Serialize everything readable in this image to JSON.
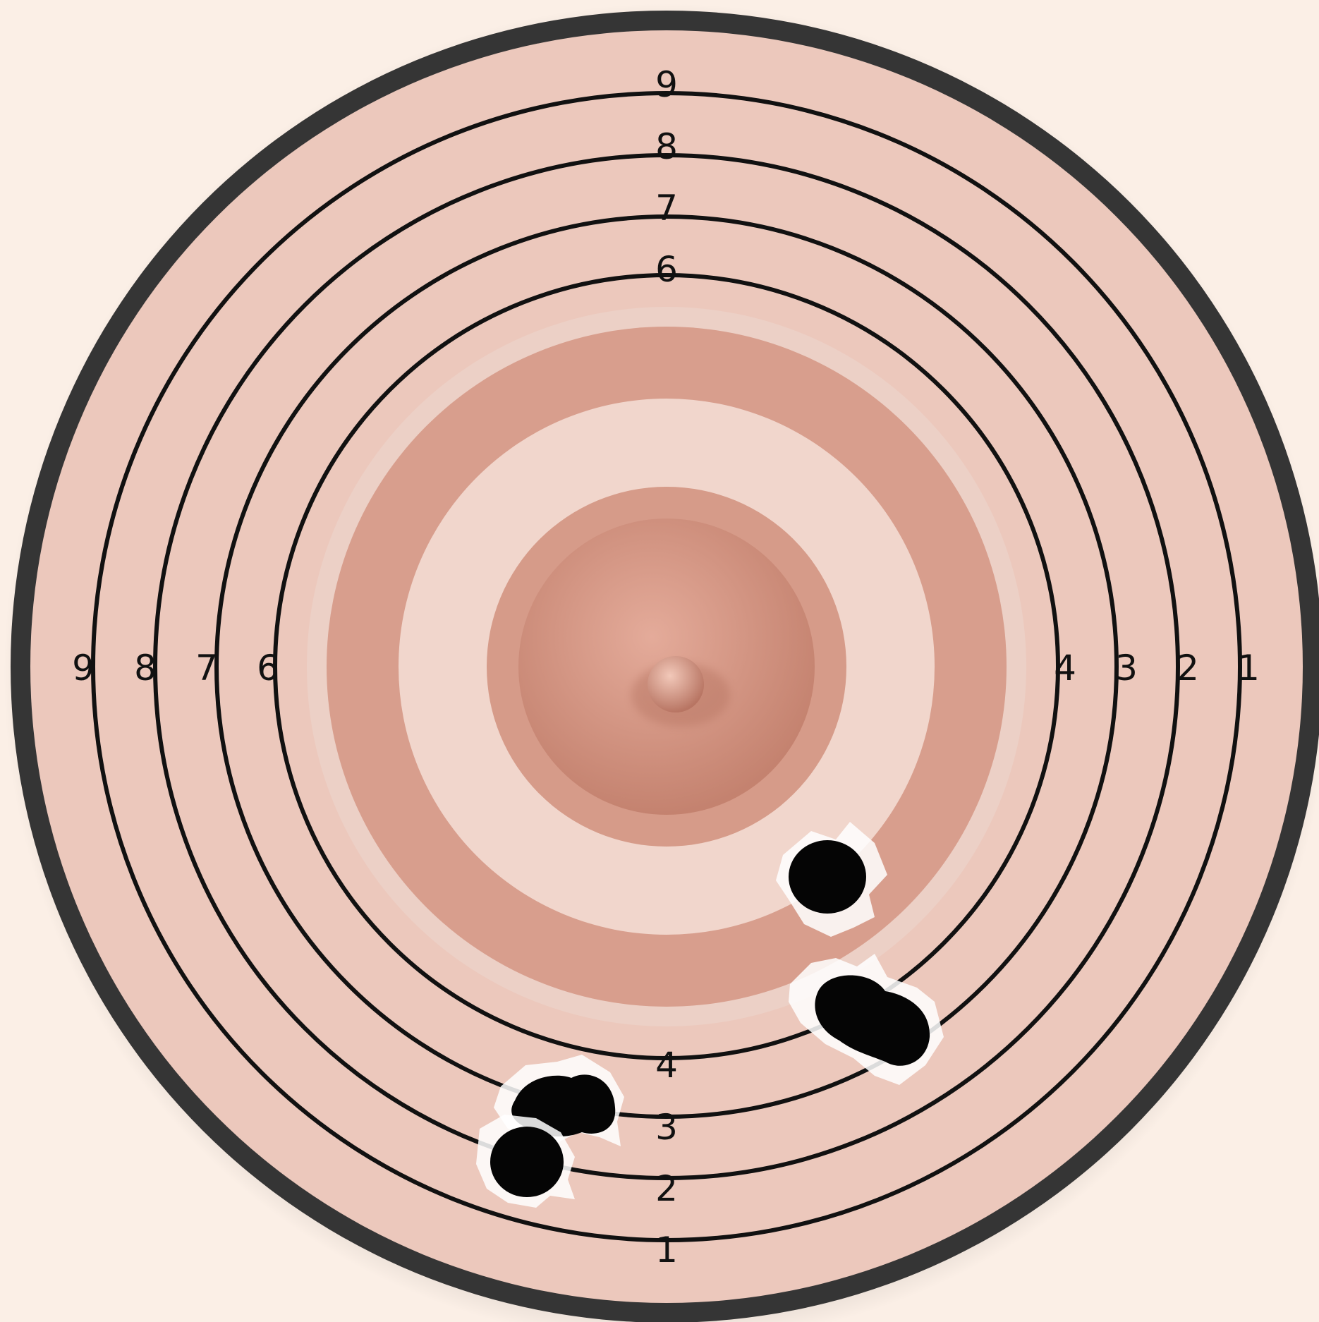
{
  "scene": {
    "description_free": true,
    "colors": {
      "background": "#fbefe6",
      "outer_border": "#353535",
      "target_face": "#ecc8bc",
      "ring_line": "#111111",
      "areola_dark": "#d79a88",
      "areola_light": "#f1d6cc",
      "nipple": "#cf8f7d",
      "bullet_hole": "#050505"
    }
  },
  "labels": {
    "top": [
      "9",
      "8",
      "7",
      "6"
    ],
    "left": [
      "9",
      "8",
      "7",
      "6"
    ],
    "right": [
      "4",
      "3",
      "2",
      "1"
    ],
    "bottom": [
      "4",
      "3",
      "2",
      "1"
    ]
  },
  "bullet_holes": {
    "count": 5,
    "icon": "bullet-hole-icon"
  }
}
